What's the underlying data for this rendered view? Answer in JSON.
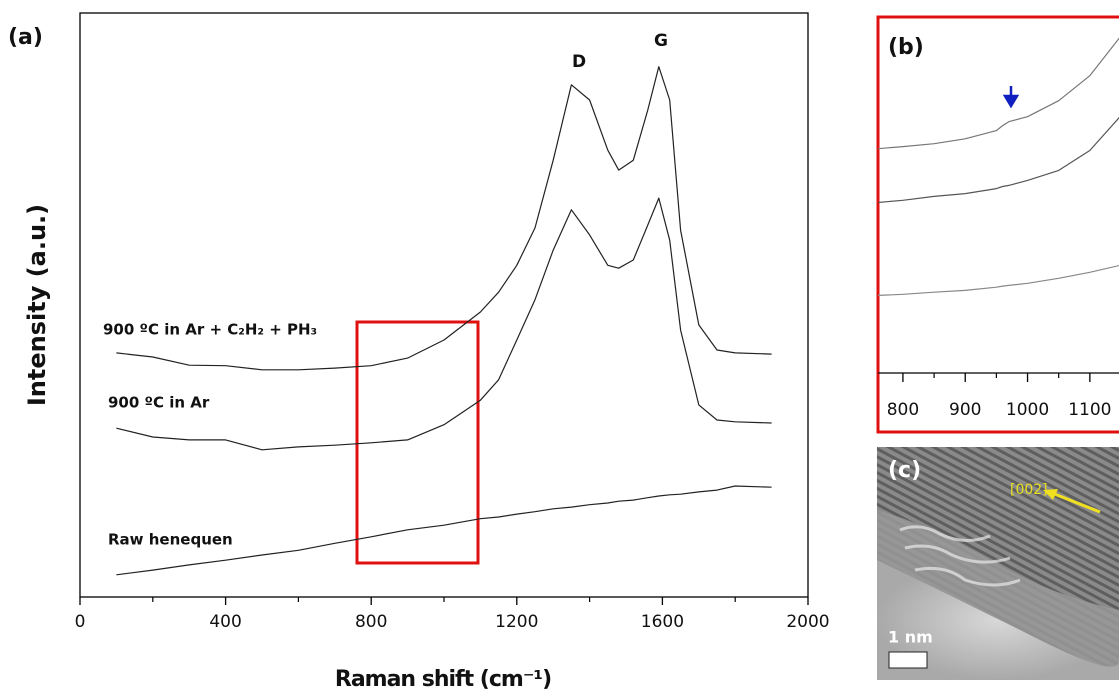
{
  "chart_data": [
    {
      "type": "line",
      "panel_label": "(a)",
      "x_label": "Raman shift (cm⁻¹)",
      "y_label": "Intensity (a.u.)",
      "peak_labels": [
        "D",
        "G"
      ],
      "x": [
        100,
        200,
        300,
        400,
        500,
        600,
        700,
        800,
        900,
        1000,
        1100,
        1150,
        1200,
        1250,
        1300,
        1350,
        1400,
        1450,
        1480,
        1520,
        1560,
        1590,
        1620,
        1650,
        1700,
        1750,
        1800,
        1900
      ],
      "series": [
        {
          "name": "900 ºC in Ar + C₂H₂ + PH₃",
          "color": "#222222",
          "values": [
            41.8,
            41.1,
            39.7,
            39.6,
            38.9,
            38.9,
            39.2,
            39.6,
            40.9,
            44.0,
            48.8,
            52.2,
            56.8,
            63.2,
            74.8,
            87.7,
            85.1,
            76.5,
            73.1,
            74.8,
            83.4,
            90.8,
            85.1,
            62.8,
            46.6,
            42.3,
            41.8,
            41.6
          ]
        },
        {
          "name": "900 ºC in Ar",
          "color": "#222222",
          "values": [
            28.9,
            27.4,
            26.9,
            26.9,
            25.2,
            25.7,
            26.0,
            26.4,
            26.9,
            29.5,
            33.7,
            37.2,
            44.0,
            50.9,
            59.4,
            66.3,
            62.0,
            56.8,
            56.3,
            57.7,
            63.7,
            68.3,
            61.1,
            45.7,
            32.9,
            30.3,
            30.0,
            29.8
          ]
        },
        {
          "name": "Raw henequen",
          "color": "#222222",
          "values": [
            3.8,
            4.6,
            5.5,
            6.3,
            7.2,
            8.0,
            9.2,
            10.3,
            11.5,
            12.3,
            13.4,
            13.7,
            14.2,
            14.6,
            15.1,
            15.4,
            15.8,
            16.1,
            16.4,
            16.6,
            17.0,
            17.3,
            17.5,
            17.6,
            18.0,
            18.3,
            19.0,
            18.8
          ]
        }
      ],
      "xlim": [
        0,
        2000
      ],
      "xticks": [
        0,
        400,
        800,
        1200,
        1600,
        2000
      ],
      "ylim": [
        0,
        100
      ],
      "yticks": []
    },
    {
      "type": "line",
      "panel_label": "(b)",
      "x": [
        760,
        800,
        850,
        900,
        950,
        960,
        970,
        1000,
        1050,
        1100,
        1150
      ],
      "series": [
        {
          "color": "#777777",
          "values": [
            63.0,
            63.6,
            64.4,
            65.8,
            68.1,
            69.5,
            70.6,
            72.0,
            76.5,
            83.5,
            94.7
          ]
        },
        {
          "color": "#555555",
          "values": [
            47.9,
            48.5,
            49.6,
            50.4,
            51.8,
            52.4,
            52.7,
            54.1,
            56.9,
            62.5,
            72.3
          ]
        },
        {
          "color": "#888888",
          "values": [
            21.8,
            22.1,
            22.7,
            23.2,
            24.1,
            24.4,
            24.6,
            25.2,
            26.6,
            28.3,
            30.3
          ]
        }
      ],
      "xlim": [
        760,
        1150
      ],
      "xticks": [
        800,
        900,
        1000,
        1100
      ],
      "ylim": [
        0,
        100
      ],
      "yticks": []
    },
    {
      "type": "image",
      "panel_label": "(c)",
      "annotation": "[002]",
      "scale_label": "1 nm"
    }
  ]
}
